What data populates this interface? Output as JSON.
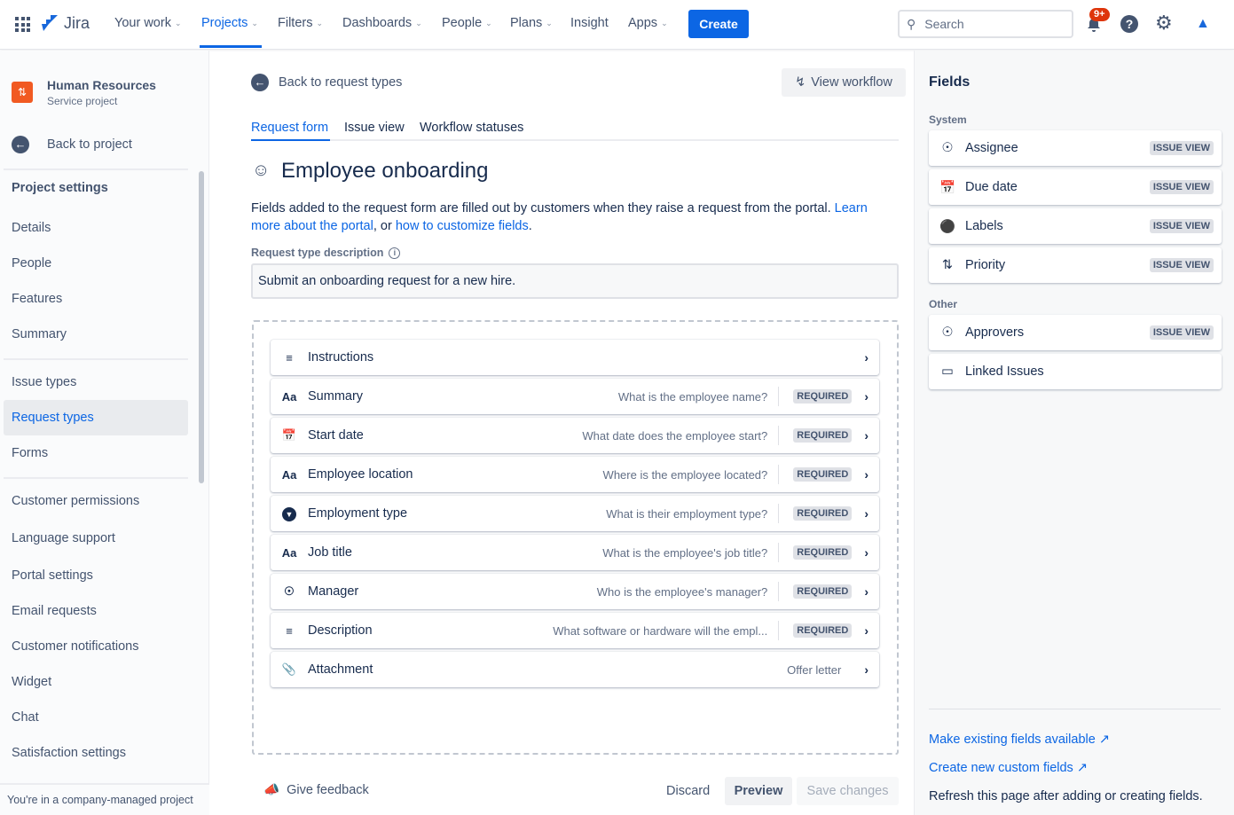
{
  "topbar": {
    "app": "Jira",
    "nav": [
      {
        "label": "Your work",
        "chev": true
      },
      {
        "label": "Projects",
        "chev": true,
        "active": true
      },
      {
        "label": "Filters",
        "chev": true
      },
      {
        "label": "Dashboards",
        "chev": true
      },
      {
        "label": "People",
        "chev": true
      },
      {
        "label": "Plans",
        "chev": true
      },
      {
        "label": "Insight",
        "chev": false
      },
      {
        "label": "Apps",
        "chev": true
      }
    ],
    "create": "Create",
    "search_placeholder": "Search",
    "notifications": "9+"
  },
  "sidebar": {
    "project_name": "Human Resources",
    "project_type": "Service project",
    "back": "Back to project",
    "heading": "Project settings",
    "items": [
      "Details",
      "People",
      "Features",
      "Summary",
      "Issue types",
      "Request types",
      "Forms",
      "Customer permissions",
      "Language support",
      "Portal settings",
      "Email requests",
      "Customer notifications",
      "Widget",
      "Chat",
      "Satisfaction settings"
    ],
    "selected": "Request types",
    "footer": "You're in a company-managed project"
  },
  "main": {
    "back": "Back to request types",
    "view_workflow": "View workflow",
    "tabs": [
      "Request form",
      "Issue view",
      "Workflow statuses"
    ],
    "title": "Employee onboarding",
    "desc_pre": "Fields added to the request form are filled out by customers when they raise a request from the portal. ",
    "desc_link1": "Learn more about the portal",
    "desc_mid": ", or ",
    "desc_link2": "how to customize fields",
    "desc_end": ".",
    "desc_label": "Request type description",
    "desc_value": "Submit an onboarding request for a new hire.",
    "fields": [
      {
        "icon": "lines-icon",
        "label": "Instructions",
        "hint": "",
        "required": false
      },
      {
        "icon": "text-icon",
        "label": "Summary",
        "hint": "What is the employee name?",
        "required": true
      },
      {
        "icon": "calendar-icon",
        "label": "Start date",
        "hint": "What date does the employee start?",
        "required": true
      },
      {
        "icon": "text-icon",
        "label": "Employee location",
        "hint": "Where is the employee located?",
        "required": true
      },
      {
        "icon": "dropdown-icon",
        "label": "Employment type",
        "hint": "What is their employment type?",
        "required": true
      },
      {
        "icon": "text-icon",
        "label": "Job title",
        "hint": "What is the employee's job title?",
        "required": true
      },
      {
        "icon": "user-icon",
        "label": "Manager",
        "hint": "Who is the employee's manager?",
        "required": true
      },
      {
        "icon": "lines-icon",
        "label": "Description",
        "hint": "What software or hardware will the empl...",
        "required": true
      },
      {
        "icon": "paperclip-icon",
        "label": "Attachment",
        "hint": "Offer letter",
        "required": false
      }
    ],
    "required_label": "REQUIRED",
    "feedback": "Give feedback",
    "discard": "Discard",
    "preview": "Preview",
    "save": "Save changes"
  },
  "right": {
    "title": "Fields",
    "system_label": "System",
    "system": [
      {
        "icon": "user-icon",
        "label": "Assignee",
        "tag": "ISSUE VIEW"
      },
      {
        "icon": "calendar-icon",
        "label": "Due date",
        "tag": "ISSUE VIEW"
      },
      {
        "icon": "label-icon",
        "label": "Labels",
        "tag": "ISSUE VIEW"
      },
      {
        "icon": "priority-icon",
        "label": "Priority",
        "tag": "ISSUE VIEW"
      }
    ],
    "other_label": "Other",
    "other": [
      {
        "icon": "user-icon",
        "label": "Approvers",
        "tag": "ISSUE VIEW"
      },
      {
        "icon": "link-icon",
        "label": "Linked Issues",
        "tag": ""
      }
    ],
    "link1": "Make existing fields available",
    "link2": "Create new custom fields",
    "note": "Refresh this page after adding or creating fields."
  },
  "colors": {
    "brand": "#0c66e4",
    "project_icon": "#f15a22"
  }
}
